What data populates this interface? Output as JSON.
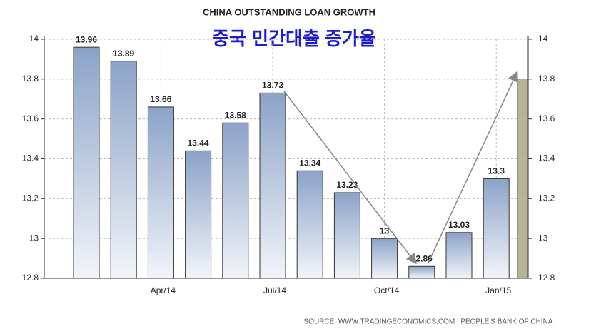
{
  "chart_data": {
    "type": "bar",
    "title": "CHINA OUTSTANDING LOAN GROWTH",
    "subtitle": "중국 민간대출 증가율",
    "source": "SOURCE: WWW.TRADINGECONOMICS.COM | PEOPLE'S BANK OF CHINA",
    "categories": [
      null,
      null,
      "Apr/14",
      null,
      null,
      "Jul/14",
      null,
      null,
      "Oct/14",
      null,
      null,
      "Jan/15"
    ],
    "values": [
      13.96,
      13.89,
      13.66,
      13.44,
      13.58,
      13.73,
      13.34,
      13.23,
      13,
      12.86,
      13.03,
      13.3
    ],
    "color": "#8ba3c8",
    "highlight": {
      "value": 13.8,
      "color": "#b5b596"
    },
    "ylim": [
      12.8,
      14
    ],
    "yticks": [
      12.8,
      13,
      13.2,
      13.4,
      13.6,
      13.8,
      14
    ],
    "y2lim": [
      12.8,
      14
    ],
    "y2ticks": [
      12.8,
      13,
      13.2,
      13.4,
      13.6,
      13.8,
      14
    ],
    "grid": true
  }
}
